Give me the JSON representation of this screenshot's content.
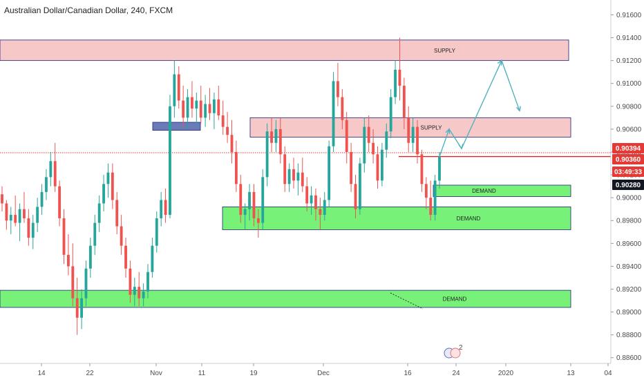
{
  "header": {
    "title": "Australian Dollar/Canadian Dollar, 240, FXCM"
  },
  "chart_data": {
    "type": "candlestick",
    "symbol": "Australian Dollar/Canadian Dollar",
    "timeframe": "240",
    "source": "FXCM",
    "ylim": [
      0.8855,
      0.9173
    ],
    "y_ticks": [
      "0.91600",
      "0.91400",
      "0.91200",
      "0.91000",
      "0.90800",
      "0.90600",
      "0.90400",
      "0.90200",
      "0.90000",
      "0.89800",
      "0.89600",
      "0.89400",
      "0.89200",
      "0.89000",
      "0.88800",
      "0.88600"
    ],
    "x_ticks": [
      "14",
      "22",
      "Nov",
      "11",
      "19",
      "Dec",
      "16",
      "24",
      "2020",
      "13",
      "04"
    ],
    "price_tags": [
      {
        "text": "0.90394",
        "value": 0.90394,
        "color": "#e53935"
      },
      {
        "text": "0.90360",
        "value": 0.9036,
        "color": "#e53935"
      },
      {
        "text": "03:49:33",
        "value": 0.90305,
        "color": "#e53935"
      },
      {
        "text": "0.90280",
        "value": 0.9028,
        "color": "#131722"
      }
    ],
    "zones": [
      {
        "label": "SUPPLY",
        "kind": "supply",
        "top": 0.9138,
        "bottom": 0.912
      },
      {
        "label": "SUPPLY",
        "kind": "supply",
        "top": 0.907,
        "bottom": 0.9053
      },
      {
        "label": "",
        "kind": "base",
        "top": 0.9066,
        "bottom": 0.9059
      },
      {
        "label": "DEMAND",
        "kind": "demand",
        "top": 0.9011,
        "bottom": 0.9001
      },
      {
        "label": "DEMAND",
        "kind": "demand",
        "top": 0.8992,
        "bottom": 0.8972
      },
      {
        "label": "DEMAND",
        "kind": "demand",
        "top": 0.8919,
        "bottom": 0.8904
      }
    ],
    "levels": [
      {
        "value": 0.90394,
        "style": "dotted",
        "color": "#e53935"
      },
      {
        "value": 0.9036,
        "style": "solid",
        "color": "#c62828"
      }
    ],
    "projection_path": [
      0.9036,
      0.906,
      0.9043,
      0.912,
      0.9076
    ],
    "candles": [
      [
        0.9003,
        0.901,
        0.8988,
        0.8995
      ],
      [
        0.8995,
        0.8998,
        0.8972,
        0.898
      ],
      [
        0.898,
        0.8992,
        0.8968,
        0.8985
      ],
      [
        0.8985,
        0.9002,
        0.8975,
        0.8978
      ],
      [
        0.8978,
        0.8995,
        0.8962,
        0.899
      ],
      [
        0.899,
        0.9005,
        0.8978,
        0.8982
      ],
      [
        0.8982,
        0.899,
        0.8958,
        0.8965
      ],
      [
        0.8965,
        0.8985,
        0.8955,
        0.8978
      ],
      [
        0.8978,
        0.9,
        0.897,
        0.8992
      ],
      [
        0.8992,
        0.9012,
        0.8985,
        0.9005
      ],
      [
        0.9005,
        0.9025,
        0.8998,
        0.9018
      ],
      [
        0.9018,
        0.904,
        0.901,
        0.9032
      ],
      [
        0.9032,
        0.9048,
        0.9005,
        0.901
      ],
      [
        0.901,
        0.9015,
        0.8975,
        0.8982
      ],
      [
        0.8982,
        0.899,
        0.8942,
        0.895
      ],
      [
        0.895,
        0.8968,
        0.8932,
        0.894
      ],
      [
        0.894,
        0.896,
        0.8905,
        0.8912
      ],
      [
        0.8912,
        0.893,
        0.888,
        0.8895
      ],
      [
        0.8895,
        0.892,
        0.8885,
        0.8912
      ],
      [
        0.8912,
        0.8945,
        0.8905,
        0.8938
      ],
      [
        0.8938,
        0.8965,
        0.893,
        0.8958
      ],
      [
        0.8958,
        0.8985,
        0.895,
        0.8978
      ],
      [
        0.8978,
        0.9002,
        0.897,
        0.8995
      ],
      [
        0.8995,
        0.902,
        0.8988,
        0.9012
      ],
      [
        0.9012,
        0.903,
        0.9,
        0.9022
      ],
      [
        0.9022,
        0.903,
        0.899,
        0.8998
      ],
      [
        0.8998,
        0.9005,
        0.8968,
        0.8975
      ],
      [
        0.8975,
        0.8985,
        0.895,
        0.8958
      ],
      [
        0.8958,
        0.8965,
        0.893,
        0.8938
      ],
      [
        0.8938,
        0.8945,
        0.8908,
        0.8915
      ],
      [
        0.8915,
        0.893,
        0.8905,
        0.8922
      ],
      [
        0.8922,
        0.8935,
        0.8905,
        0.8912
      ],
      [
        0.8912,
        0.8925,
        0.8905,
        0.8918
      ],
      [
        0.8918,
        0.8942,
        0.8912,
        0.8935
      ],
      [
        0.8935,
        0.8965,
        0.893,
        0.8958
      ],
      [
        0.8958,
        0.8988,
        0.8952,
        0.8982
      ],
      [
        0.8982,
        0.9005,
        0.8975,
        0.8998
      ],
      [
        0.8998,
        0.9008,
        0.8978,
        0.8985
      ],
      [
        0.8985,
        0.909,
        0.8982,
        0.908
      ],
      [
        0.908,
        0.912,
        0.907,
        0.9108
      ],
      [
        0.9108,
        0.9115,
        0.9078,
        0.9085
      ],
      [
        0.9085,
        0.9098,
        0.9062,
        0.907
      ],
      [
        0.907,
        0.9095,
        0.906,
        0.9088
      ],
      [
        0.9088,
        0.9102,
        0.907,
        0.9078
      ],
      [
        0.9078,
        0.9092,
        0.9062,
        0.9085
      ],
      [
        0.9085,
        0.9098,
        0.9065,
        0.907
      ],
      [
        0.907,
        0.909,
        0.9062,
        0.9082
      ],
      [
        0.9082,
        0.9096,
        0.9068,
        0.9074
      ],
      [
        0.9074,
        0.9092,
        0.906,
        0.9086
      ],
      [
        0.9086,
        0.9098,
        0.9068,
        0.9072
      ],
      [
        0.9072,
        0.9085,
        0.9055,
        0.9062
      ],
      [
        0.9062,
        0.9075,
        0.9048,
        0.9055
      ],
      [
        0.9055,
        0.9068,
        0.903,
        0.904
      ],
      [
        0.904,
        0.905,
        0.9005,
        0.9012
      ],
      [
        0.9012,
        0.902,
        0.8978,
        0.8985
      ],
      [
        0.8985,
        0.8995,
        0.8972,
        0.899
      ],
      [
        0.899,
        0.9012,
        0.898,
        0.9005
      ],
      [
        0.9005,
        0.9012,
        0.8975,
        0.8982
      ],
      [
        0.8982,
        0.899,
        0.8965,
        0.8978
      ],
      [
        0.8978,
        0.9025,
        0.8972,
        0.9018
      ],
      [
        0.9018,
        0.9065,
        0.901,
        0.9058
      ],
      [
        0.9058,
        0.907,
        0.904,
        0.9048
      ],
      [
        0.9048,
        0.9068,
        0.904,
        0.906
      ],
      [
        0.906,
        0.907,
        0.903,
        0.9038
      ],
      [
        0.9038,
        0.9045,
        0.9005,
        0.9012
      ],
      [
        0.9012,
        0.903,
        0.9005,
        0.9025
      ],
      [
        0.9025,
        0.9035,
        0.9008,
        0.9015
      ],
      [
        0.9015,
        0.903,
        0.9002,
        0.9022
      ],
      [
        0.9022,
        0.9035,
        0.9005,
        0.901
      ],
      [
        0.901,
        0.9018,
        0.8988,
        0.8995
      ],
      [
        0.8995,
        0.901,
        0.8985,
        0.9002
      ],
      [
        0.9002,
        0.9008,
        0.898,
        0.899
      ],
      [
        0.899,
        0.9,
        0.8972,
        0.8985
      ],
      [
        0.8985,
        0.9005,
        0.898,
        0.8998
      ],
      [
        0.8998,
        0.905,
        0.8992,
        0.9045
      ],
      [
        0.9045,
        0.911,
        0.904,
        0.9102
      ],
      [
        0.9102,
        0.9118,
        0.908,
        0.9088
      ],
      [
        0.9088,
        0.9095,
        0.906,
        0.9068
      ],
      [
        0.9068,
        0.9075,
        0.903,
        0.904
      ],
      [
        0.904,
        0.9048,
        0.9005,
        0.9012
      ],
      [
        0.9012,
        0.902,
        0.8982,
        0.899
      ],
      [
        0.899,
        0.9035,
        0.8985,
        0.903
      ],
      [
        0.903,
        0.907,
        0.9022,
        0.9062
      ],
      [
        0.9062,
        0.9072,
        0.904,
        0.9048
      ],
      [
        0.9048,
        0.906,
        0.903,
        0.9038
      ],
      [
        0.9038,
        0.9045,
        0.9008,
        0.9015
      ],
      [
        0.9015,
        0.9048,
        0.901,
        0.9042
      ],
      [
        0.9042,
        0.9065,
        0.9035,
        0.9058
      ],
      [
        0.9058,
        0.9095,
        0.9052,
        0.9088
      ],
      [
        0.9088,
        0.912,
        0.9082,
        0.9112
      ],
      [
        0.9112,
        0.914,
        0.9085,
        0.9098
      ],
      [
        0.9098,
        0.9105,
        0.906,
        0.907
      ],
      [
        0.907,
        0.908,
        0.904,
        0.9048
      ],
      [
        0.9048,
        0.907,
        0.904,
        0.9062
      ],
      [
        0.9062,
        0.9068,
        0.903,
        0.9038
      ],
      [
        0.9038,
        0.9042,
        0.9005,
        0.9012
      ],
      [
        0.9012,
        0.9018,
        0.899,
        0.9
      ],
      [
        0.9,
        0.9015,
        0.898,
        0.8985
      ],
      [
        0.8985,
        0.902,
        0.898,
        0.9015
      ],
      [
        0.9015,
        0.904,
        0.9008,
        0.9036
      ]
    ]
  },
  "overlays": {
    "badge_count": "2"
  }
}
